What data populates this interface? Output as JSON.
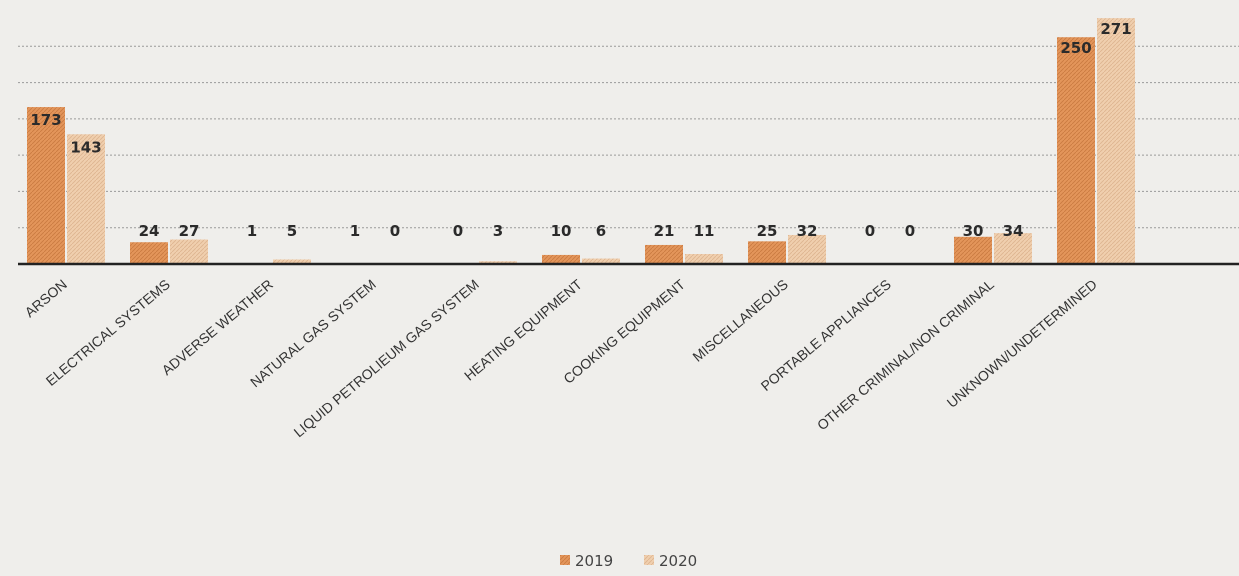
{
  "chart_data": {
    "type": "bar",
    "categories": [
      "ARSON",
      "ELECTRICAL SYSTEMS",
      "ADVERSE WEATHER",
      "NATURAL GAS SYSTEM",
      "LIQUID PETROLIEUM GAS SYSTEM",
      "HEATING EQUIPMENT",
      "COOKING EQUIPMENT",
      "MISCELLANEOUS",
      "PORTABLE APPLIANCES",
      "OTHER CRIMINAL/NON CRIMINAL",
      "UNKNOWN/UNDETERMINED"
    ],
    "series": [
      {
        "name": "2019",
        "color": "#e3955a",
        "values": [
          173,
          24,
          1,
          1,
          0,
          10,
          21,
          25,
          0,
          30,
          250
        ]
      },
      {
        "name": "2020",
        "color": "#f0cfae",
        "values": [
          143,
          27,
          5,
          0,
          3,
          6,
          11,
          32,
          0,
          34,
          271
        ]
      }
    ],
    "data_labels": [
      [
        "173",
        "143"
      ],
      [
        "24",
        "27"
      ],
      [
        "1",
        "5"
      ],
      [
        "1",
        "0"
      ],
      [
        "0",
        "3"
      ],
      [
        "10",
        "6"
      ],
      [
        "21",
        "11"
      ],
      [
        "25",
        "32"
      ],
      [
        "0",
        "0"
      ],
      [
        "30",
        "34"
      ],
      [
        "250",
        "271"
      ]
    ],
    "ylim": [
      0,
      280
    ],
    "grid": true,
    "legend_position": "bottom-center"
  }
}
